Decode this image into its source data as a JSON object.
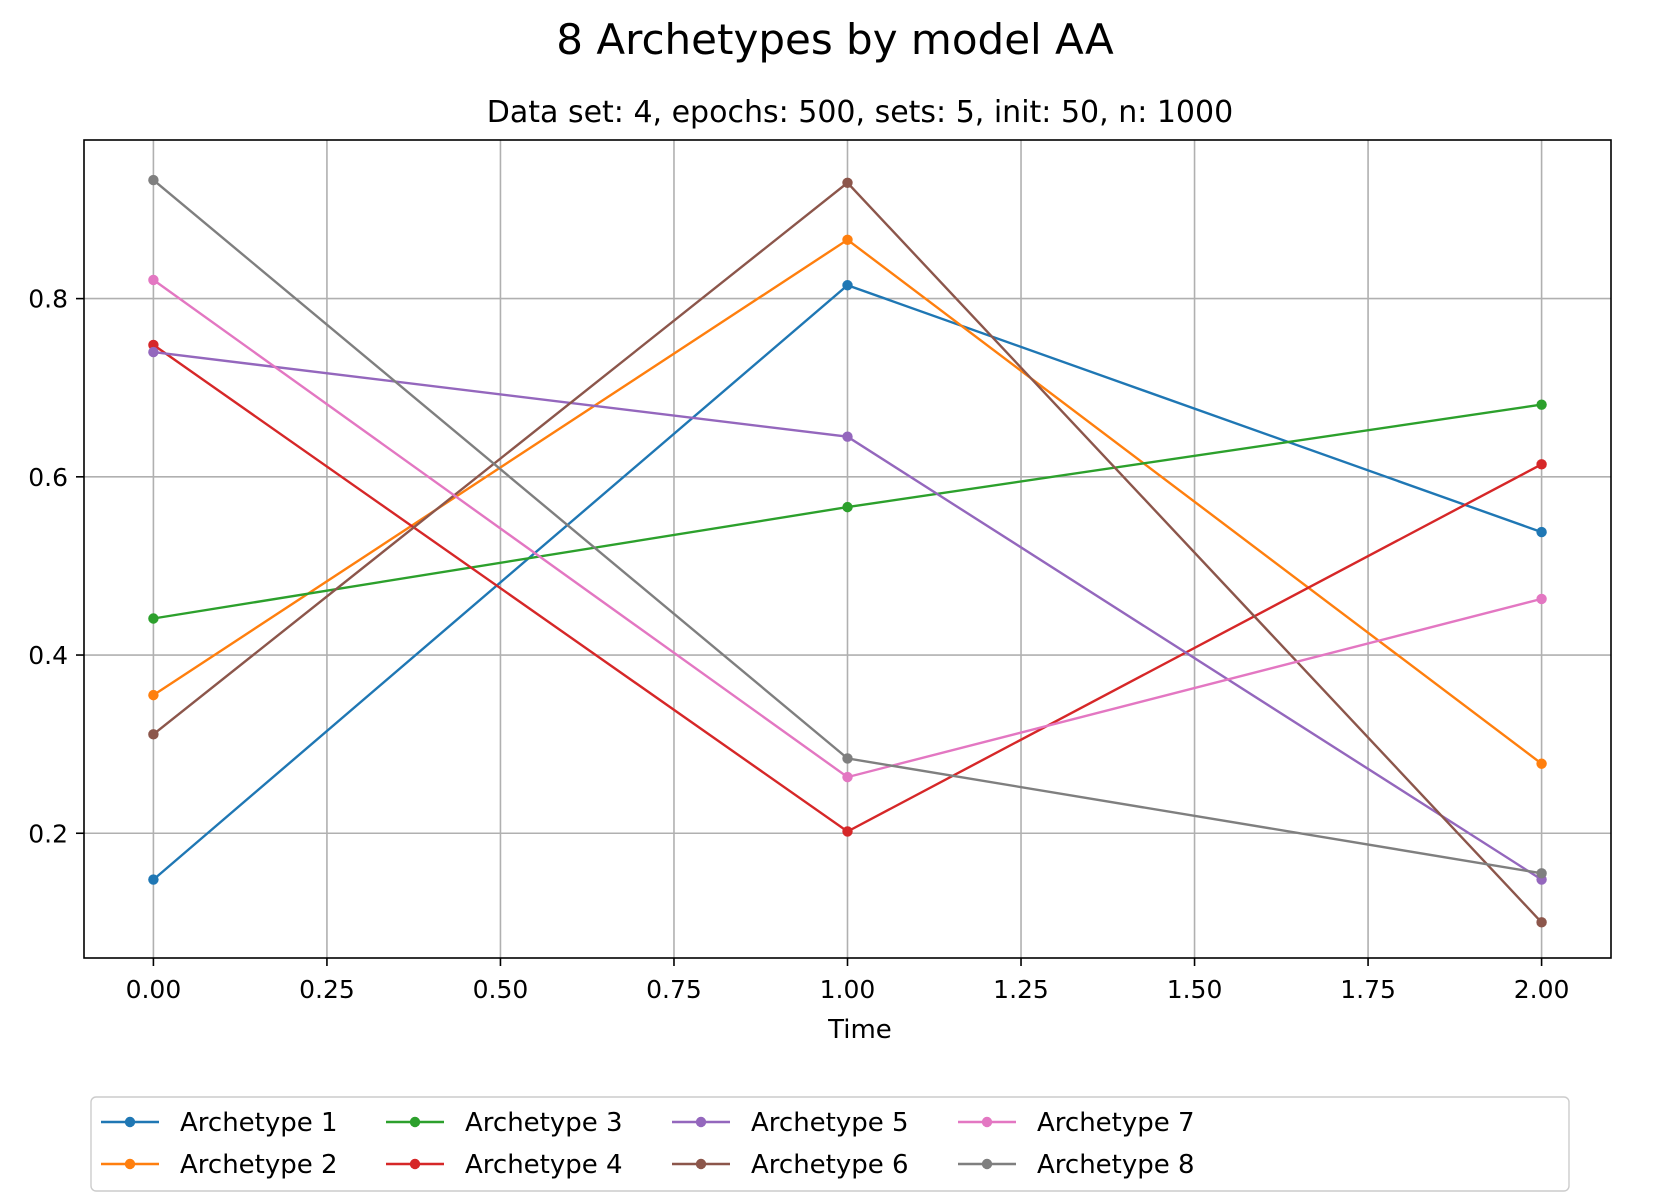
{
  "chart_data": {
    "type": "line",
    "title": "8 Archetypes by model AA",
    "subtitle": "Data set: 4, epochs: 500, sets: 5, init: 50, n: 1000",
    "xlabel": "Time",
    "ylabel": "",
    "xlim": [
      -0.1,
      2.1
    ],
    "ylim": [
      0.06,
      0.978
    ],
    "xticks": [
      0.0,
      0.25,
      0.5,
      0.75,
      1.0,
      1.25,
      1.5,
      1.75,
      2.0
    ],
    "xtick_labels": [
      "0.00",
      "0.25",
      "0.50",
      "0.75",
      "1.00",
      "1.25",
      "1.50",
      "1.75",
      "2.00"
    ],
    "yticks": [
      0.2,
      0.4,
      0.6,
      0.8
    ],
    "ytick_labels": [
      "0.2",
      "0.4",
      "0.6",
      "0.8"
    ],
    "grid": true,
    "legend_placement": "bottom-center",
    "x": [
      0,
      1,
      2
    ],
    "series": [
      {
        "name": "Archetype 1",
        "color": "#1f77b4",
        "values": [
          0.148,
          0.815,
          0.538
        ]
      },
      {
        "name": "Archetype 2",
        "color": "#ff7f0e",
        "values": [
          0.355,
          0.866,
          0.278
        ]
      },
      {
        "name": "Archetype 3",
        "color": "#2ca02c",
        "values": [
          0.441,
          0.566,
          0.681
        ]
      },
      {
        "name": "Archetype 4",
        "color": "#d62728",
        "values": [
          0.748,
          0.202,
          0.614
        ]
      },
      {
        "name": "Archetype 5",
        "color": "#9467bd",
        "values": [
          0.74,
          0.645,
          0.148
        ]
      },
      {
        "name": "Archetype 6",
        "color": "#8c564b",
        "values": [
          0.311,
          0.93,
          0.1
        ]
      },
      {
        "name": "Archetype 7",
        "color": "#e377c2",
        "values": [
          0.821,
          0.263,
          0.463
        ]
      },
      {
        "name": "Archetype 8",
        "color": "#7f7f7f",
        "values": [
          0.933,
          0.284,
          0.155
        ]
      }
    ]
  }
}
